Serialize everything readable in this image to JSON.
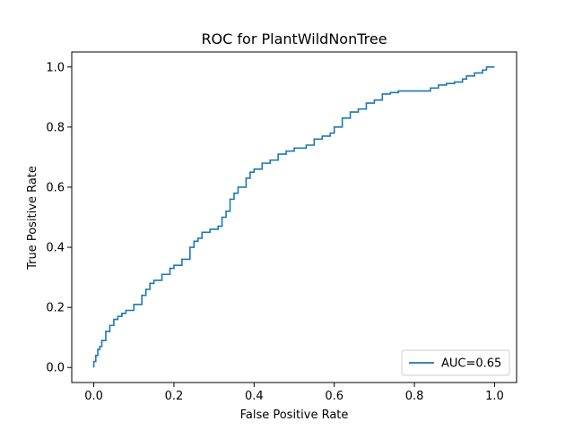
{
  "chart_data": {
    "type": "line",
    "title": "ROC for PlantWildNonTree",
    "xlabel": "False Positive Rate",
    "ylabel": "True Positive Rate",
    "xlim": [
      -0.055,
      1.055
    ],
    "ylim": [
      -0.05,
      1.05
    ],
    "xticks": [
      0.0,
      0.2,
      0.4,
      0.6,
      0.8,
      1.0
    ],
    "yticks": [
      0.0,
      0.2,
      0.4,
      0.6,
      0.8,
      1.0
    ],
    "xtick_labels": [
      "0.0",
      "0.2",
      "0.4",
      "0.6",
      "0.8",
      "1.0"
    ],
    "ytick_labels": [
      "0.0",
      "0.2",
      "0.4",
      "0.6",
      "0.8",
      "1.0"
    ],
    "grid": false,
    "legend_position": "lower-right",
    "series": [
      {
        "name": "AUC=0.65",
        "color": "#1f77b4",
        "x": [
          0.0,
          0.0,
          0.005,
          0.01,
          0.015,
          0.02,
          0.03,
          0.04,
          0.05,
          0.06,
          0.07,
          0.08,
          0.1,
          0.12,
          0.13,
          0.14,
          0.15,
          0.17,
          0.19,
          0.2,
          0.22,
          0.24,
          0.25,
          0.26,
          0.27,
          0.29,
          0.31,
          0.32,
          0.33,
          0.34,
          0.35,
          0.36,
          0.38,
          0.39,
          0.4,
          0.42,
          0.44,
          0.46,
          0.48,
          0.5,
          0.53,
          0.55,
          0.57,
          0.59,
          0.6,
          0.62,
          0.64,
          0.66,
          0.68,
          0.7,
          0.72,
          0.74,
          0.76,
          0.8,
          0.84,
          0.86,
          0.88,
          0.9,
          0.92,
          0.93,
          0.95,
          0.97,
          0.98,
          1.0
        ],
        "y": [
          0.0,
          0.02,
          0.04,
          0.06,
          0.07,
          0.09,
          0.12,
          0.14,
          0.16,
          0.17,
          0.18,
          0.19,
          0.21,
          0.24,
          0.26,
          0.28,
          0.29,
          0.31,
          0.33,
          0.34,
          0.36,
          0.4,
          0.42,
          0.43,
          0.45,
          0.46,
          0.47,
          0.5,
          0.52,
          0.56,
          0.58,
          0.6,
          0.63,
          0.65,
          0.66,
          0.68,
          0.69,
          0.71,
          0.72,
          0.73,
          0.74,
          0.76,
          0.77,
          0.78,
          0.8,
          0.83,
          0.85,
          0.86,
          0.88,
          0.89,
          0.91,
          0.915,
          0.92,
          0.92,
          0.93,
          0.94,
          0.945,
          0.95,
          0.96,
          0.97,
          0.98,
          0.99,
          1.0,
          1.0
        ]
      }
    ]
  }
}
